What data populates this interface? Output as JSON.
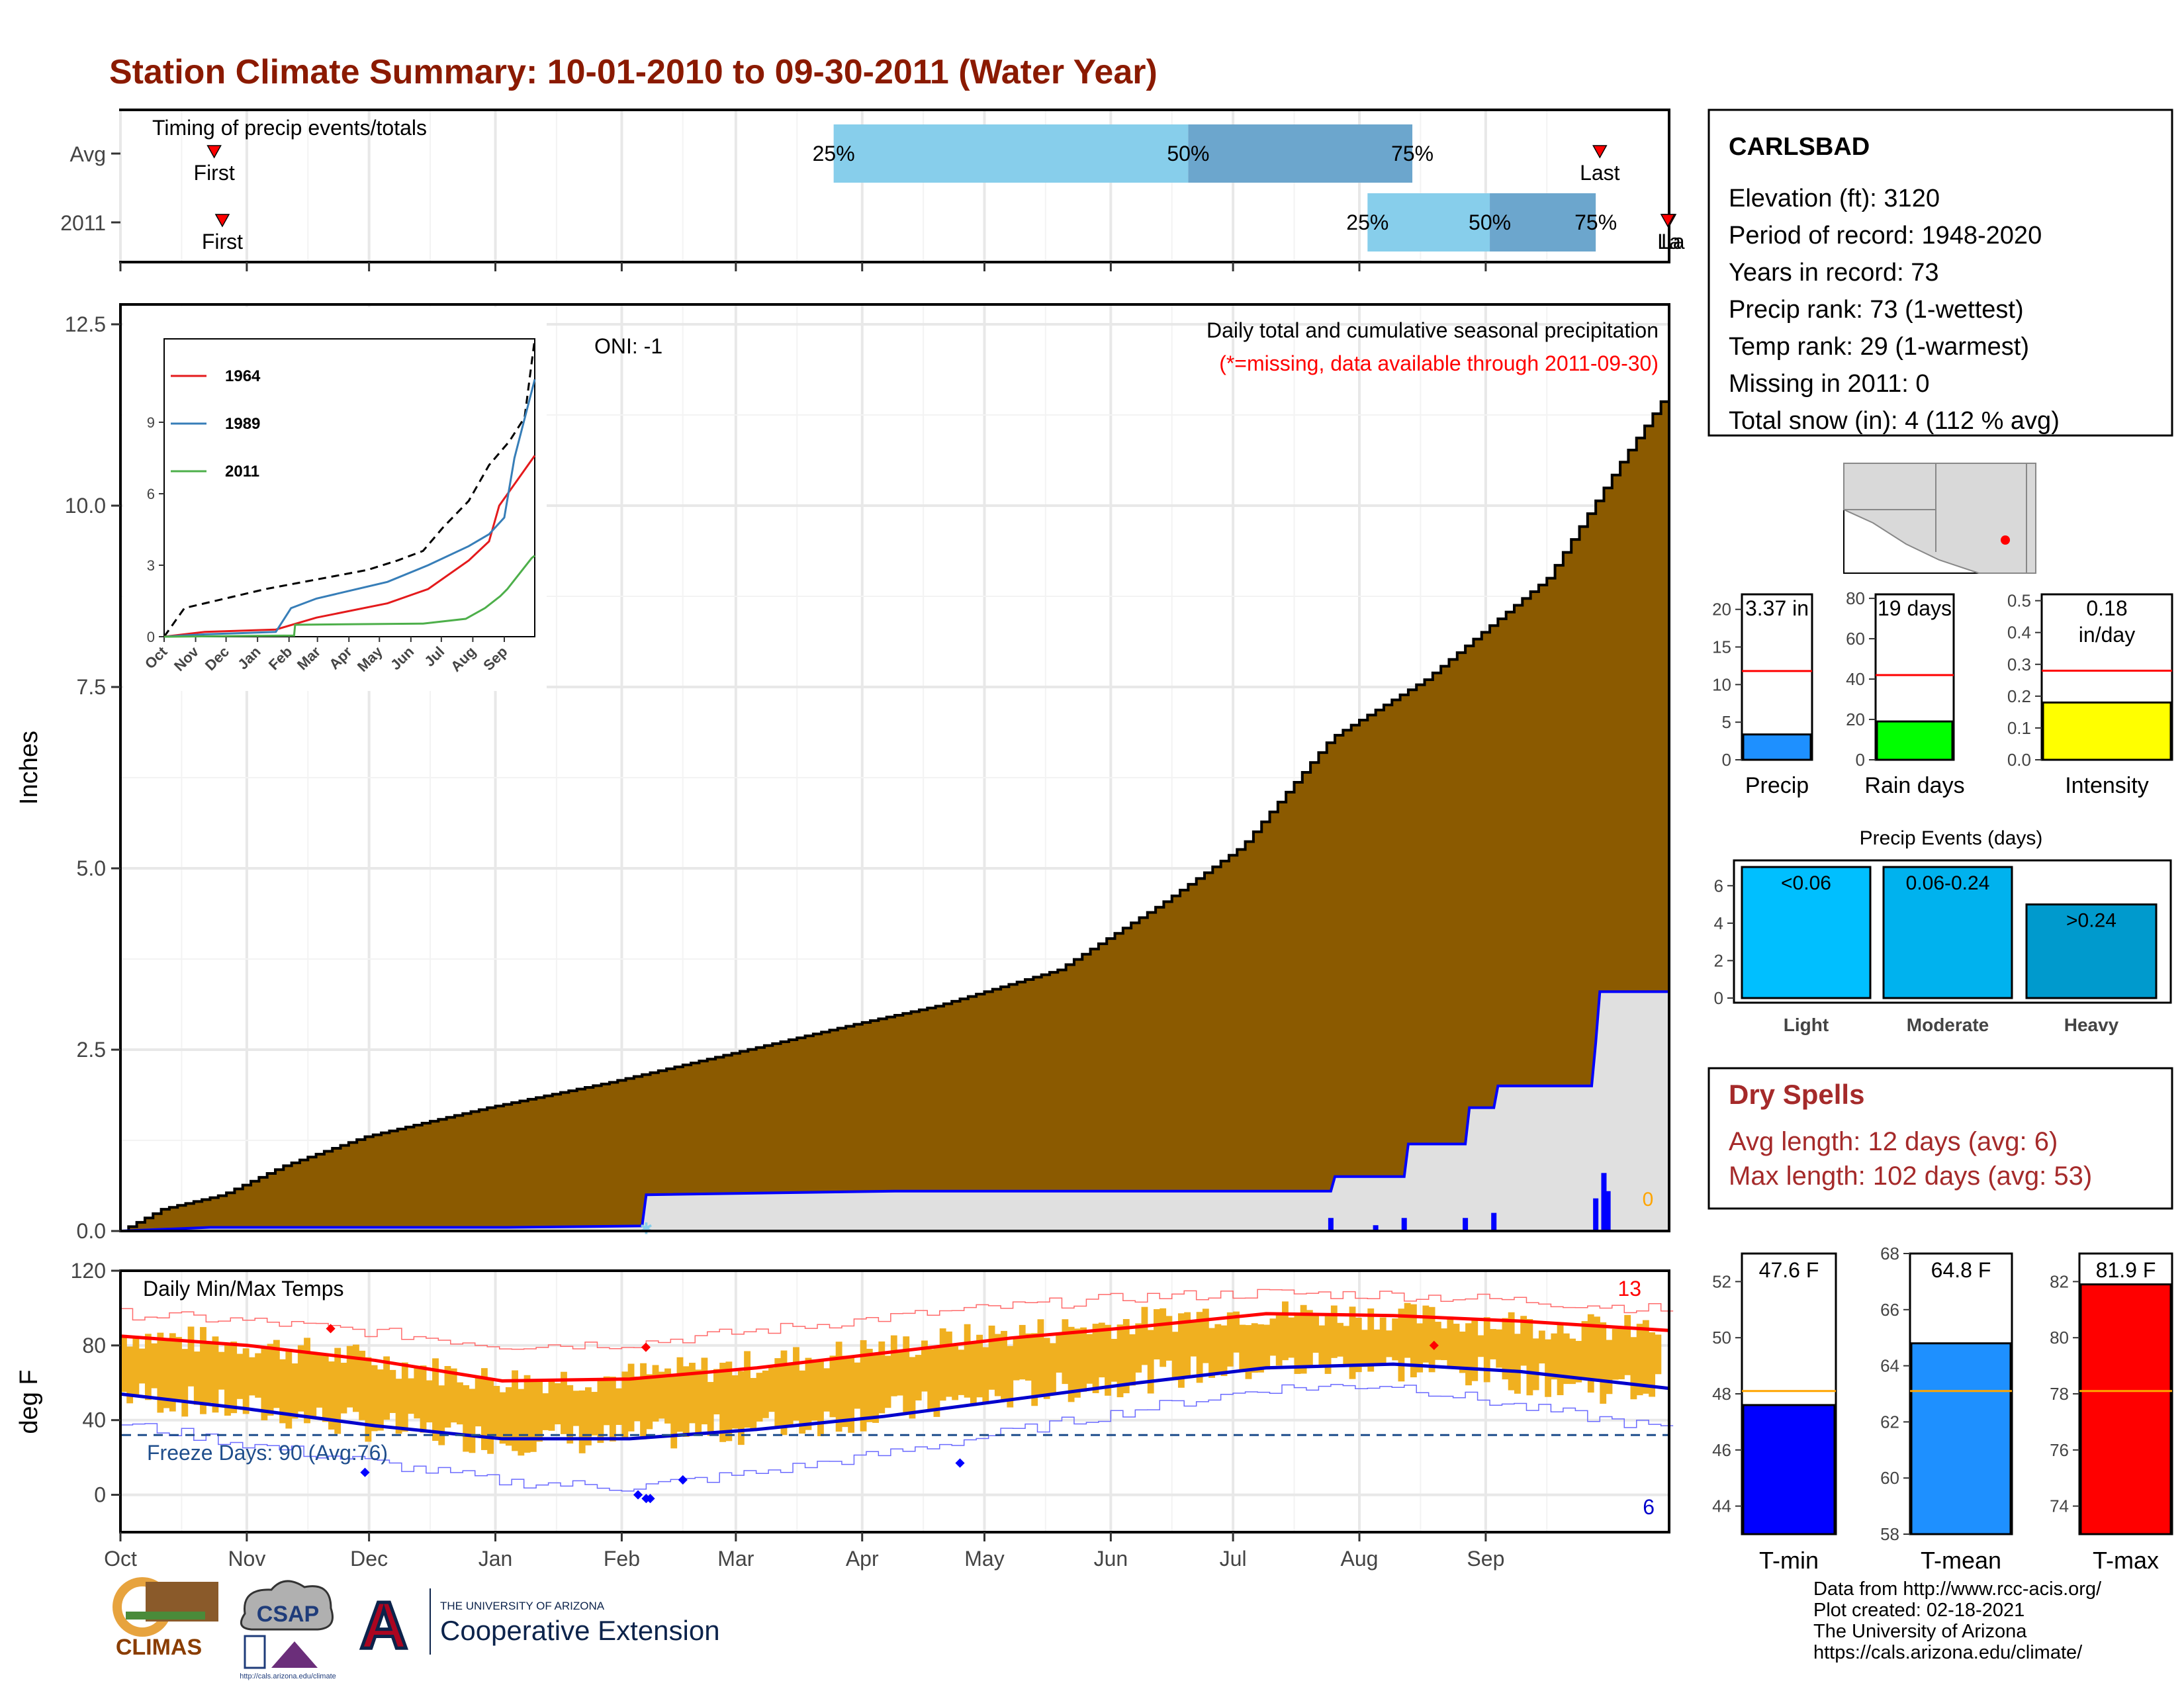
{
  "title": "Station Climate Summary: 10-01-2010 to 09-30-2011 (Water Year)",
  "months": [
    "Oct",
    "Nov",
    "Dec",
    "Jan",
    "Feb",
    "Mar",
    "Apr",
    "May",
    "Jun",
    "Jul",
    "Aug",
    "Sep"
  ],
  "timing": {
    "title": "Timing of precip events/totals",
    "rows": [
      {
        "label": "Avg",
        "first_label": "First",
        "last_label": "Last",
        "p25": "25%",
        "p50": "50%",
        "p75": "75%",
        "first_day": 23,
        "last_day": 363,
        "q25_day": 175,
        "q50_day": 262,
        "q75_day": 317
      },
      {
        "label": "2011",
        "first_label": "First",
        "last_label": "La",
        "p25": "25%",
        "p50": "50%",
        "p75": "75%",
        "first_day": 25,
        "last_day": 380,
        "q25_day": 306,
        "q50_day": 336,
        "q75_day": 362
      }
    ]
  },
  "precip": {
    "ylabel": "Inches",
    "label_right_top": "Daily total and cumulative seasonal precipitation",
    "label_right_sub": "(*=missing, data available through 2011-09-30)",
    "oni": "ONI: -1",
    "missing_count": "0",
    "yticks": [
      "0.0",
      "2.5",
      "5.0",
      "7.5",
      "10.0",
      "12.5"
    ],
    "ylim": [
      0,
      12.5
    ],
    "avg_cumulative": [
      [
        0,
        0
      ],
      [
        10,
        0.3
      ],
      [
        25,
        0.5
      ],
      [
        40,
        0.9
      ],
      [
        60,
        1.3
      ],
      [
        90,
        1.7
      ],
      [
        120,
        2.05
      ],
      [
        150,
        2.45
      ],
      [
        180,
        2.85
      ],
      [
        200,
        3.1
      ],
      [
        230,
        3.6
      ],
      [
        255,
        4.5
      ],
      [
        275,
        5.3
      ],
      [
        297,
        6.8
      ],
      [
        320,
        7.6
      ],
      [
        350,
        9.0
      ],
      [
        368,
        10.6
      ],
      [
        380,
        11.6
      ]
    ],
    "year_cumulative": [
      [
        0,
        0
      ],
      [
        22,
        0.05
      ],
      [
        95,
        0.05
      ],
      [
        128,
        0.07
      ],
      [
        129,
        0.5
      ],
      [
        190,
        0.55
      ],
      [
        255,
        0.55
      ],
      [
        297,
        0.55
      ],
      [
        298,
        0.75
      ],
      [
        315,
        0.75
      ],
      [
        316,
        1.2
      ],
      [
        330,
        1.2
      ],
      [
        331,
        1.7
      ],
      [
        337,
        1.7
      ],
      [
        338,
        2.0
      ],
      [
        361,
        2.0
      ],
      [
        362,
        2.6
      ],
      [
        363,
        3.3
      ],
      [
        380,
        3.3
      ]
    ],
    "daily_bars": [
      [
        129,
        0.05
      ],
      [
        297,
        0.18
      ],
      [
        308,
        0.08
      ],
      [
        315,
        0.18
      ],
      [
        330,
        0.18
      ],
      [
        337,
        0.25
      ],
      [
        362,
        0.45
      ],
      [
        364,
        0.8
      ],
      [
        365,
        0.55
      ]
    ]
  },
  "inset": {
    "yticks": [
      "0",
      "3",
      "6",
      "9"
    ],
    "months": [
      "Oct",
      "Nov",
      "Dec",
      "Jan",
      "Feb",
      "Mar",
      "Apr",
      "May",
      "Jun",
      "Jul",
      "Aug",
      "Sep"
    ],
    "series": [
      {
        "name": "1964",
        "color": "#e41a1c",
        "values": [
          [
            0,
            0
          ],
          [
            40,
            0.2
          ],
          [
            110,
            0.3
          ],
          [
            150,
            0.8
          ],
          [
            220,
            1.4
          ],
          [
            260,
            2.0
          ],
          [
            300,
            3.2
          ],
          [
            320,
            4.0
          ],
          [
            330,
            5.5
          ],
          [
            365,
            7.6
          ]
        ]
      },
      {
        "name": "1989",
        "color": "#377eb8",
        "values": [
          [
            0,
            0
          ],
          [
            40,
            0.1
          ],
          [
            110,
            0.2
          ],
          [
            125,
            1.2
          ],
          [
            150,
            1.6
          ],
          [
            220,
            2.3
          ],
          [
            260,
            3.0
          ],
          [
            300,
            3.8
          ],
          [
            320,
            4.3
          ],
          [
            335,
            5.0
          ],
          [
            345,
            7.5
          ],
          [
            365,
            10.8
          ]
        ]
      },
      {
        "name": "2011",
        "color": "#4daf4a",
        "values": [
          [
            0,
            0
          ],
          [
            128,
            0.05
          ],
          [
            129,
            0.5
          ],
          [
            255,
            0.55
          ],
          [
            297,
            0.75
          ],
          [
            316,
            1.2
          ],
          [
            331,
            1.7
          ],
          [
            338,
            2.0
          ],
          [
            362,
            3.3
          ],
          [
            365,
            3.4
          ]
        ]
      }
    ],
    "max_line": [
      [
        0,
        0
      ],
      [
        20,
        1.2
      ],
      [
        60,
        1.6
      ],
      [
        100,
        2.0
      ],
      [
        150,
        2.4
      ],
      [
        200,
        2.8
      ],
      [
        230,
        3.2
      ],
      [
        255,
        3.6
      ],
      [
        275,
        4.6
      ],
      [
        300,
        5.7
      ],
      [
        320,
        7.2
      ],
      [
        340,
        8.2
      ],
      [
        355,
        9.2
      ],
      [
        365,
        12.5
      ]
    ]
  },
  "temps": {
    "title": "Daily Min/Max Temps",
    "ylabel": "deg F",
    "freeze_label": "Freeze Days: 90 (Avg:76)",
    "freeze_line": 32,
    "record_high_count": "13",
    "record_low_count": "6",
    "yticks": [
      "0",
      "40",
      "80",
      "120"
    ],
    "ylim": [
      -20,
      120
    ],
    "avg_max": [
      [
        0,
        85
      ],
      [
        30,
        80
      ],
      [
        60,
        72
      ],
      [
        90,
        61
      ],
      [
        120,
        62
      ],
      [
        150,
        68
      ],
      [
        180,
        76
      ],
      [
        210,
        84
      ],
      [
        240,
        90
      ],
      [
        270,
        97
      ],
      [
        300,
        96
      ],
      [
        330,
        93
      ],
      [
        365,
        88
      ]
    ],
    "avg_min": [
      [
        0,
        54
      ],
      [
        30,
        46
      ],
      [
        60,
        37
      ],
      [
        90,
        30
      ],
      [
        120,
        30
      ],
      [
        150,
        35
      ],
      [
        180,
        42
      ],
      [
        210,
        51
      ],
      [
        240,
        60
      ],
      [
        270,
        68
      ],
      [
        300,
        70
      ],
      [
        330,
        66
      ],
      [
        365,
        57
      ]
    ],
    "rec_high": [
      [
        0,
        97
      ],
      [
        30,
        93
      ],
      [
        60,
        87
      ],
      [
        90,
        80
      ],
      [
        120,
        81
      ],
      [
        150,
        88
      ],
      [
        180,
        95
      ],
      [
        210,
        101
      ],
      [
        240,
        106
      ],
      [
        270,
        108
      ],
      [
        300,
        107
      ],
      [
        330,
        104
      ],
      [
        365,
        99
      ]
    ],
    "rec_low": [
      [
        0,
        38
      ],
      [
        30,
        27
      ],
      [
        60,
        17
      ],
      [
        90,
        7
      ],
      [
        120,
        4
      ],
      [
        150,
        12
      ],
      [
        180,
        22
      ],
      [
        210,
        34
      ],
      [
        240,
        46
      ],
      [
        270,
        57
      ],
      [
        300,
        59
      ],
      [
        330,
        47
      ],
      [
        365,
        35
      ]
    ]
  },
  "station": {
    "name": "CARLSBAD",
    "lines": [
      "Elevation (ft): 3120",
      "Period of record: 1948-2020",
      "Years in record: 73",
      "Precip rank: 73 (1-wettest)",
      "Temp rank: 29 (1-warmest)",
      "Missing in 2011: 0",
      "Total snow (in): 4 (112 % avg)"
    ]
  },
  "mini_bars": [
    {
      "label": "Precip",
      "value_label": "3.37 in",
      "value": 3.37,
      "avg": 11.8,
      "ymax": 22,
      "yticks": [
        "0",
        "5",
        "10",
        "15",
        "20"
      ],
      "color": "#1e90ff"
    },
    {
      "label": "Rain days",
      "value_label": "19 days",
      "value": 19,
      "avg": 42,
      "ymax": 82,
      "yticks": [
        "0",
        "20",
        "40",
        "60",
        "80"
      ],
      "color": "#00ff00"
    },
    {
      "label": "Intensity",
      "value_label": "0.18\nin/day",
      "value": 0.18,
      "avg": 0.28,
      "ymax": 0.52,
      "yticks": [
        "0.0",
        "0.1",
        "0.2",
        "0.3",
        "0.4",
        "0.5"
      ],
      "color": "#ffff00"
    }
  ],
  "events": {
    "title": "Precip Events (days)",
    "yticks": [
      "0",
      "2",
      "4",
      "6"
    ],
    "ymax": 7,
    "bars": [
      {
        "category": "Light",
        "value": 7,
        "label": "<0.06",
        "color": "#00bfff"
      },
      {
        "category": "Moderate",
        "value": 7,
        "label": "0.06-0.24",
        "color": "#00b2ee"
      },
      {
        "category": "Heavy",
        "value": 5,
        "label": ">0.24",
        "color": "#009acd"
      }
    ]
  },
  "dry_spells": {
    "title": "Dry Spells",
    "avg_line": "Avg length: 12 days (avg: 6)",
    "max_line": "Max length: 102 days (avg: 53)"
  },
  "temp_bars": [
    {
      "label": "T-min",
      "value_label": "47.6 F",
      "value": 47.6,
      "avg": 48.1,
      "ymin": 43,
      "ymax": 53,
      "yticks": [
        "44",
        "46",
        "48",
        "50",
        "52"
      ],
      "color": "#0000ff"
    },
    {
      "label": "T-mean",
      "value_label": "64.8 F",
      "value": 64.8,
      "avg": 63.1,
      "ymin": 58,
      "ymax": 68,
      "yticks": [
        "58",
        "60",
        "62",
        "64",
        "66",
        "68"
      ],
      "color": "#1e90ff"
    },
    {
      "label": "T-max",
      "value_label": "81.9 F",
      "value": 81.9,
      "avg": 78.1,
      "ymin": 73,
      "ymax": 83,
      "yticks": [
        "74",
        "76",
        "78",
        "80",
        "82"
      ],
      "color": "#ff0000"
    }
  ],
  "credits": [
    "Data from http://www.rcc-acis.org/",
    "Plot created: 02-18-2021",
    "The University of Arizona",
    "https://cals.arizona.edu/climate/"
  ],
  "logos": {
    "climas": "CLIMAS",
    "csap": "CSAP",
    "csap_url": "http://cals.arizona.edu/climate",
    "ua_small": "THE UNIVERSITY OF ARIZONA",
    "ua_big": "Cooperative Extension"
  }
}
